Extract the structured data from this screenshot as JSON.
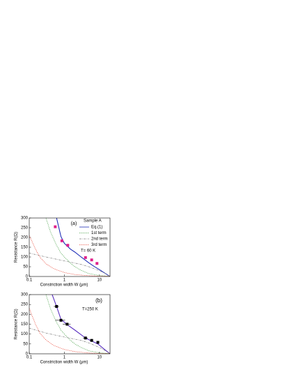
{
  "chart_data": [
    {
      "type": "line",
      "panel_label": "(a)",
      "legend_title": "Sample A",
      "annotation": "T= 60 K",
      "xlabel": "Constriction width W (μm)",
      "ylabel": "Resistance R(Ω)",
      "log_x": true,
      "xlim": [
        0.1,
        20
      ],
      "xticks": [
        0.1,
        1,
        10
      ],
      "ylim": [
        0,
        300
      ],
      "yticks": [
        0,
        50,
        100,
        150,
        200,
        250,
        300
      ],
      "series": [
        {
          "name": "Eq.(1)",
          "color": "#1f2fb8",
          "dash": "solid",
          "x": [
            0.6,
            0.8,
            1,
            1.5,
            2,
            3,
            5,
            7,
            10,
            14,
            20
          ],
          "values": [
            300,
            205,
            170,
            140,
            125,
            100,
            70,
            52,
            35,
            18,
            0
          ]
        },
        {
          "name": "1st term",
          "color": "#3a9a3a",
          "dash": "dotted",
          "x": [
            0.3,
            0.4,
            0.6,
            0.8,
            1,
            1.5,
            2,
            3,
            5,
            10,
            20
          ],
          "values": [
            300,
            230,
            160,
            120,
            100,
            68,
            50,
            32,
            15,
            5,
            1
          ]
        },
        {
          "name": "2nd term",
          "color": "#808080",
          "dash": "dashdot",
          "x": [
            0.1,
            0.3,
            1,
            3,
            5,
            10,
            15,
            20
          ],
          "values": [
            120,
            100,
            80,
            62,
            50,
            30,
            15,
            0
          ]
        },
        {
          "name": "3rd term",
          "color": "#e83a2a",
          "dash": "dotted",
          "x": [
            0.1,
            0.15,
            0.2,
            0.3,
            0.5,
            1,
            2,
            5,
            10,
            20
          ],
          "values": [
            210,
            140,
            100,
            65,
            40,
            20,
            10,
            4,
            2,
            1
          ]
        },
        {
          "color": "#e0208a",
          "marker": "square",
          "x": [
            0.55,
            0.85,
            1.25,
            4,
            6,
            8.5
          ],
          "values": [
            255,
            183,
            160,
            97,
            85,
            67
          ]
        }
      ]
    },
    {
      "type": "line",
      "panel_label": "(b)",
      "annotation": "T=250 K",
      "xlabel": "Constriction width W (μm)",
      "ylabel": "Resistance R(Ω)",
      "log_x": true,
      "xlim": [
        0.1,
        20
      ],
      "xticks": [
        0.1,
        1,
        10
      ],
      "ylim": [
        0,
        300
      ],
      "yticks": [
        0,
        50,
        100,
        150,
        200,
        250,
        300
      ],
      "series": [
        {
          "color": "#5a2fc0",
          "dash": "solid",
          "x": [
            0.45,
            0.6,
            0.8,
            1.2,
            2,
            4,
            6,
            9,
            14,
            20
          ],
          "values": [
            300,
            240,
            175,
            148,
            120,
            80,
            65,
            50,
            22,
            0
          ]
        },
        {
          "color": "#3a9a3a",
          "dash": "dotted",
          "x": [
            0.3,
            0.4,
            0.6,
            0.8,
            1,
            1.5,
            2,
            3,
            5,
            10,
            20
          ],
          "values": [
            300,
            230,
            160,
            120,
            100,
            68,
            50,
            32,
            15,
            5,
            1
          ]
        },
        {
          "color": "#808080",
          "dash": "dashdot",
          "x": [
            0.1,
            0.3,
            1,
            3,
            5,
            10,
            15,
            20
          ],
          "values": [
            130,
            105,
            85,
            68,
            55,
            32,
            15,
            0
          ]
        },
        {
          "color": "#e83a2a",
          "dash": "dotted",
          "x": [
            0.1,
            0.15,
            0.2,
            0.3,
            0.5,
            1,
            2,
            5,
            10,
            20
          ],
          "values": [
            230,
            150,
            105,
            70,
            42,
            22,
            11,
            4,
            2,
            1
          ]
        },
        {
          "color": "#000000",
          "marker": "square",
          "x": [
            0.6,
            0.8,
            1.2,
            4,
            6,
            9
          ],
          "values": [
            240,
            170,
            150,
            80,
            68,
            58
          ],
          "xerr": [
            0.1,
            0.25,
            0.3,
            0.6,
            0.6,
            0.6
          ]
        }
      ]
    }
  ]
}
